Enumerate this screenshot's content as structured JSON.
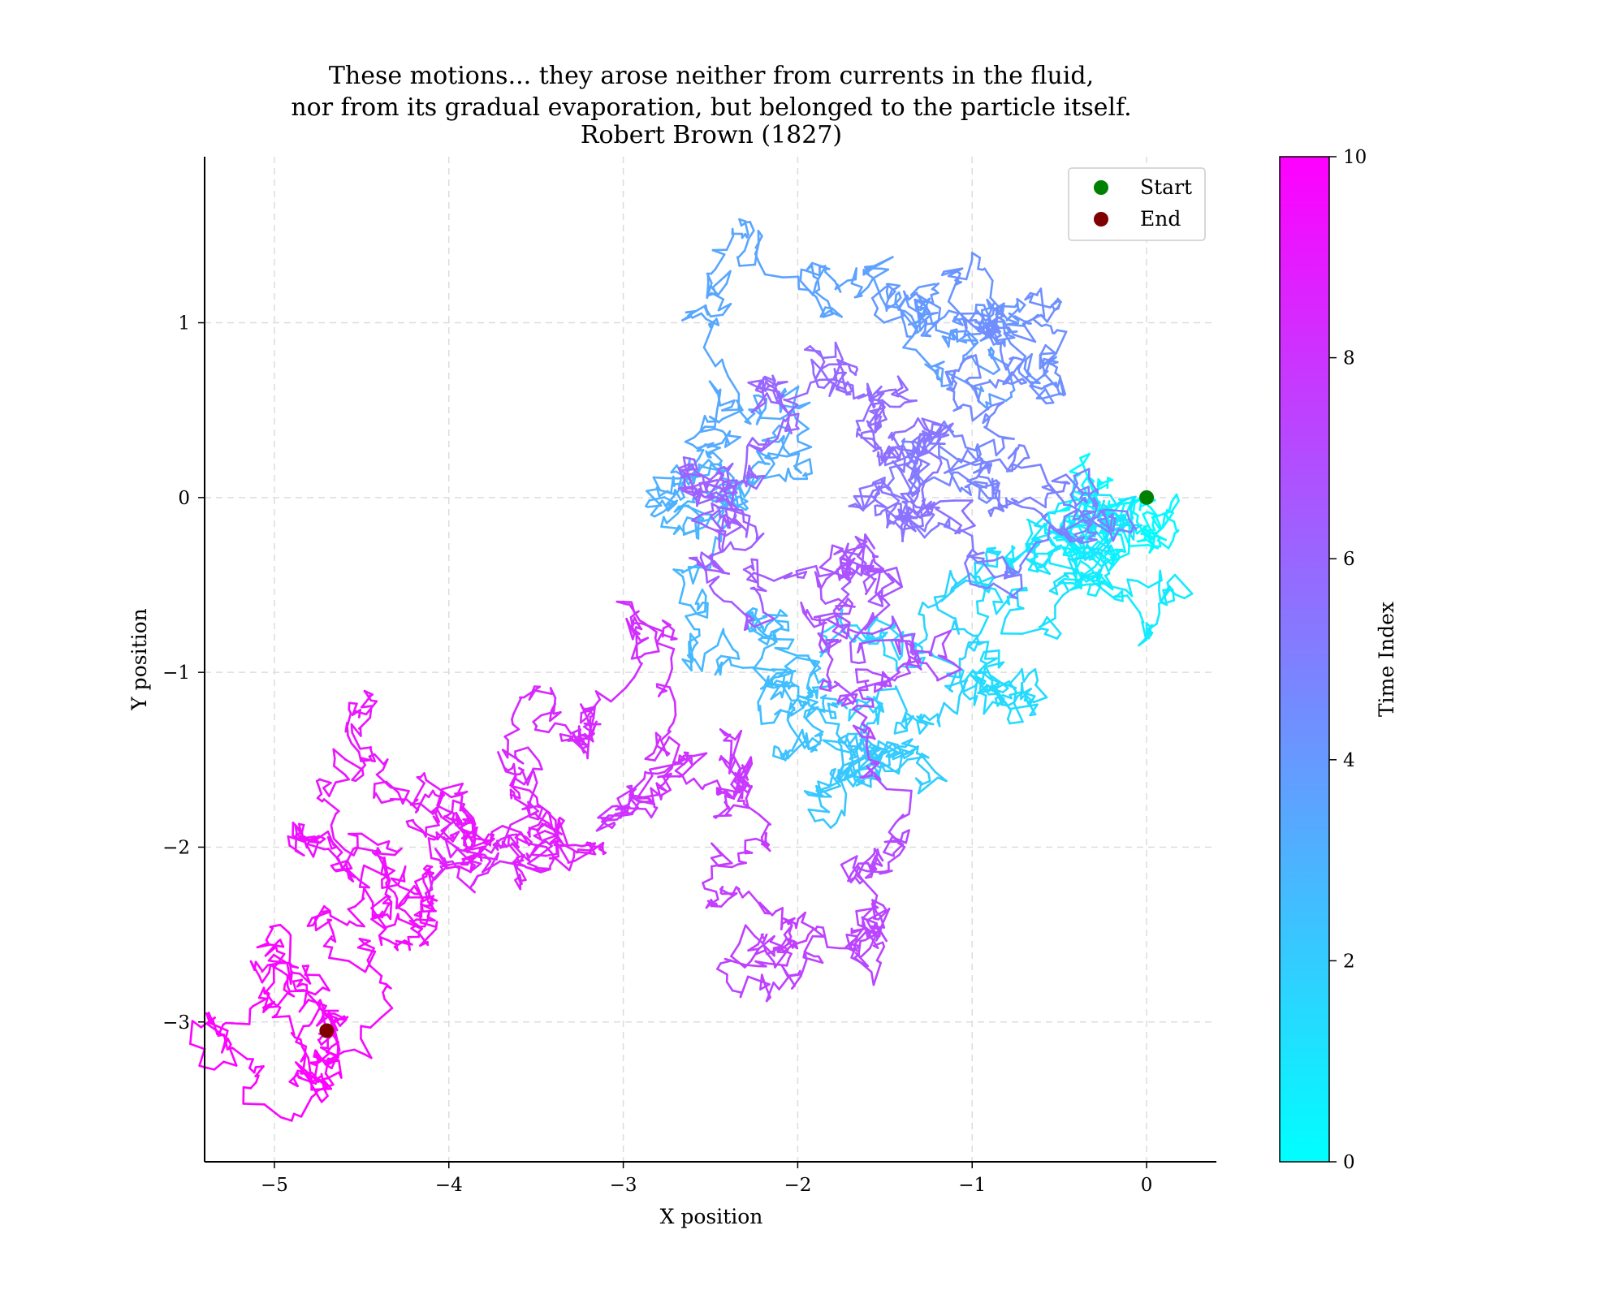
{
  "chart_data": {
    "type": "line",
    "title_lines": [
      "These motions... they arose neither from currents in the fluid,",
      "nor from its gradual evaporation, but belonged to the particle itself.",
      "Robert Brown (1827)"
    ],
    "xlabel": "X position",
    "ylabel": "Y position",
    "xlim": [
      -5.4,
      0.4
    ],
    "ylim": [
      -3.8,
      1.95
    ],
    "xticks": [
      -5,
      -4,
      -3,
      -2,
      -1,
      0
    ],
    "xtick_labels": [
      "−5",
      "−4",
      "−3",
      "−2",
      "−1",
      "0"
    ],
    "yticks": [
      1,
      0,
      -1,
      -2,
      -3
    ],
    "ytick_labels": [
      "1",
      "0",
      "−1",
      "−2",
      "−3"
    ],
    "grid": true,
    "legend": {
      "placement": "top-right",
      "entries": [
        {
          "label": "Start",
          "color": "#008000"
        },
        {
          "label": "End",
          "color": "#800000"
        }
      ]
    },
    "colorbar": {
      "label": "Time Index",
      "range": [
        0,
        10
      ],
      "ticks": [
        0,
        2,
        4,
        6,
        8,
        10
      ],
      "tick_labels": [
        "0",
        "2",
        "4",
        "6",
        "8",
        "10"
      ],
      "colormap": "cool",
      "color_low": "#00ffff",
      "color_high": "#ff00ff"
    },
    "start_point": {
      "x": 0.0,
      "y": 0.0
    },
    "end_point": {
      "x": -4.7,
      "y": -3.05
    },
    "path_waypoints": [
      {
        "t": 0.0,
        "x": 0.0,
        "y": 0.0
      },
      {
        "t": 0.3,
        "x": 0.05,
        "y": -0.2
      },
      {
        "t": 0.6,
        "x": -0.3,
        "y": -0.35
      },
      {
        "t": 0.9,
        "x": -0.65,
        "y": -0.3
      },
      {
        "t": 1.2,
        "x": -0.6,
        "y": -0.75
      },
      {
        "t": 1.5,
        "x": -0.9,
        "y": -1.1
      },
      {
        "t": 1.8,
        "x": -1.3,
        "y": -1.35
      },
      {
        "t": 2.1,
        "x": -1.6,
        "y": -1.55
      },
      {
        "t": 2.4,
        "x": -1.95,
        "y": -1.35
      },
      {
        "t": 2.7,
        "x": -2.1,
        "y": -0.75
      },
      {
        "t": 3.0,
        "x": -2.35,
        "y": 0.0
      },
      {
        "t": 3.3,
        "x": -2.1,
        "y": 0.45
      },
      {
        "t": 3.6,
        "x": -1.8,
        "y": 1.05
      },
      {
        "t": 3.9,
        "x": -1.3,
        "y": 1.0
      },
      {
        "t": 4.2,
        "x": -1.0,
        "y": 1.4
      },
      {
        "t": 4.5,
        "x": -0.75,
        "y": 0.8
      },
      {
        "t": 4.8,
        "x": -0.8,
        "y": 0.15
      },
      {
        "t": 5.1,
        "x": -1.0,
        "y": -0.3
      },
      {
        "t": 5.4,
        "x": -1.45,
        "y": -0.15
      },
      {
        "t": 5.7,
        "x": -1.6,
        "y": 0.65
      },
      {
        "t": 6.0,
        "x": -2.2,
        "y": 0.6
      },
      {
        "t": 6.3,
        "x": -2.3,
        "y": -0.3
      },
      {
        "t": 6.6,
        "x": -1.75,
        "y": -0.4
      },
      {
        "t": 6.9,
        "x": -1.6,
        "y": -1.1
      },
      {
        "t": 7.2,
        "x": -1.75,
        "y": -2.1
      },
      {
        "t": 7.5,
        "x": -2.2,
        "y": -2.55
      },
      {
        "t": 7.8,
        "x": -2.3,
        "y": -1.65
      },
      {
        "t": 8.1,
        "x": -2.8,
        "y": -1.6
      },
      {
        "t": 8.4,
        "x": -3.3,
        "y": -1.35
      },
      {
        "t": 8.7,
        "x": -3.6,
        "y": -2.0
      },
      {
        "t": 9.0,
        "x": -4.1,
        "y": -1.8
      },
      {
        "t": 9.2,
        "x": -4.5,
        "y": -1.2
      },
      {
        "t": 9.4,
        "x": -4.3,
        "y": -2.35
      },
      {
        "t": 9.6,
        "x": -4.5,
        "y": -2.7
      },
      {
        "t": 9.8,
        "x": -4.85,
        "y": -3.1
      },
      {
        "t": 10.0,
        "x": -4.7,
        "y": -3.05
      }
    ]
  }
}
